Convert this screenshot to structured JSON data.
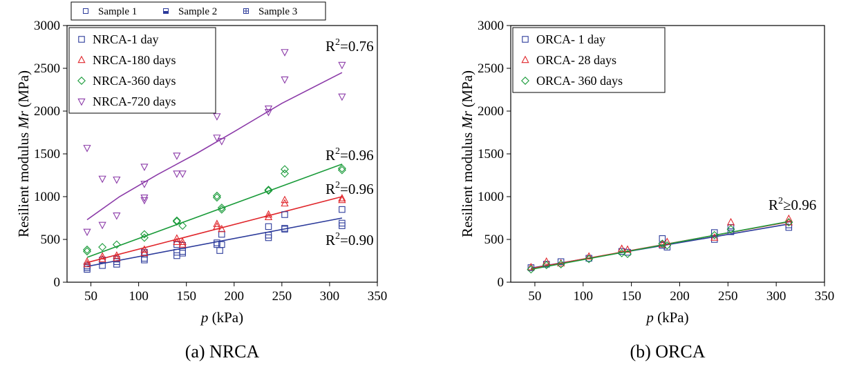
{
  "top_legend": {
    "entries": [
      {
        "label": "Sample 1",
        "marker": "square-open",
        "color": "#2b3a9a"
      },
      {
        "label": "Sample 2",
        "marker": "square-half",
        "color": "#2b3a9a"
      },
      {
        "label": "Sample 3",
        "marker": "square-cross",
        "color": "#2b3a9a"
      }
    ]
  },
  "chart_data": [
    {
      "type": "scatter",
      "caption": "(a) NRCA",
      "xlabel": "p (kPa)",
      "ylabel": "Resilient modulus Mr (MPa)",
      "xlim": [
        25,
        350
      ],
      "ylim": [
        0,
        3000
      ],
      "xticks": [
        50,
        100,
        150,
        200,
        250,
        300,
        350
      ],
      "yticks": [
        0,
        500,
        1000,
        1500,
        2000,
        2500,
        3000
      ],
      "legend_position": "top-left",
      "grid": false,
      "series": [
        {
          "name": "NRCA-1 day",
          "marker": "square",
          "color": "#2b3a9a",
          "points": [
            [
              46,
              150
            ],
            [
              46,
              170
            ],
            [
              46,
              190
            ],
            [
              62,
              195
            ],
            [
              62,
              260
            ],
            [
              77,
              210
            ],
            [
              77,
              240
            ],
            [
              77,
              270
            ],
            [
              106,
              260
            ],
            [
              106,
              280
            ],
            [
              106,
              330
            ],
            [
              106,
              350
            ],
            [
              140,
              310
            ],
            [
              140,
              350
            ],
            [
              140,
              440
            ],
            [
              146,
              340
            ],
            [
              146,
              360
            ],
            [
              146,
              430
            ],
            [
              182,
              440
            ],
            [
              182,
              460
            ],
            [
              185,
              370
            ],
            [
              187,
              440
            ],
            [
              187,
              560
            ],
            [
              236,
              520
            ],
            [
              236,
              550
            ],
            [
              236,
              650
            ],
            [
              253,
              620
            ],
            [
              253,
              630
            ],
            [
              253,
              790
            ],
            [
              313,
              660
            ],
            [
              313,
              690
            ],
            [
              313,
              850
            ]
          ],
          "fit": [
            [
              46,
              185
            ],
            [
              313,
              750
            ]
          ],
          "r2_label": "R2=0.90"
        },
        {
          "name": "NRCA-180 days",
          "marker": "triangle-up",
          "color": "#e0262b",
          "points": [
            [
              46,
              210
            ],
            [
              46,
              240
            ],
            [
              62,
              270
            ],
            [
              62,
              300
            ],
            [
              77,
              280
            ],
            [
              77,
              310
            ],
            [
              106,
              340
            ],
            [
              106,
              380
            ],
            [
              140,
              470
            ],
            [
              140,
              510
            ],
            [
              146,
              470
            ],
            [
              146,
              440
            ],
            [
              182,
              650
            ],
            [
              182,
              680
            ],
            [
              187,
              620
            ],
            [
              236,
              760
            ],
            [
              236,
              790
            ],
            [
              253,
              920
            ],
            [
              253,
              960
            ],
            [
              313,
              960
            ],
            [
              313,
              980
            ]
          ],
          "fit": [
            [
              46,
              230
            ],
            [
              313,
              1000
            ]
          ],
          "r2_label": "R2=0.96"
        },
        {
          "name": "NRCA-360 days",
          "marker": "diamond",
          "color": "#1a9b3a",
          "points": [
            [
              46,
              360
            ],
            [
              46,
              380
            ],
            [
              62,
              410
            ],
            [
              77,
              440
            ],
            [
              106,
              520
            ],
            [
              106,
              560
            ],
            [
              140,
              710
            ],
            [
              140,
              720
            ],
            [
              146,
              660
            ],
            [
              182,
              990
            ],
            [
              182,
              1010
            ],
            [
              187,
              850
            ],
            [
              187,
              870
            ],
            [
              236,
              1070
            ],
            [
              236,
              1080
            ],
            [
              253,
              1270
            ],
            [
              253,
              1320
            ],
            [
              313,
              1310
            ],
            [
              313,
              1330
            ]
          ],
          "fit": [
            [
              46,
              290
            ],
            [
              313,
              1380
            ]
          ],
          "r2_label": "R2=0.96"
        },
        {
          "name": "NRCA-720 days",
          "marker": "triangle-down",
          "color": "#8b3aa8",
          "points": [
            [
              46,
              590
            ],
            [
              46,
              1570
            ],
            [
              62,
              670
            ],
            [
              62,
              1210
            ],
            [
              77,
              780
            ],
            [
              77,
              1200
            ],
            [
              106,
              960
            ],
            [
              106,
              990
            ],
            [
              106,
              1150
            ],
            [
              106,
              1350
            ],
            [
              140,
              1270
            ],
            [
              140,
              1480
            ],
            [
              146,
              1270
            ],
            [
              182,
              1690
            ],
            [
              182,
              1940
            ],
            [
              187,
              1650
            ],
            [
              236,
              1990
            ],
            [
              236,
              2030
            ],
            [
              253,
              2370
            ],
            [
              253,
              2690
            ],
            [
              313,
              2170
            ],
            [
              313,
              2540
            ]
          ],
          "fit": [
            [
              46,
              730
            ],
            [
              80,
              1000
            ],
            [
              120,
              1260
            ],
            [
              160,
              1500
            ],
            [
              200,
              1760
            ],
            [
              250,
              2090
            ],
            [
              313,
              2450
            ]
          ],
          "r2_label": "R2=0.76"
        }
      ]
    },
    {
      "type": "scatter",
      "caption": "(b) ORCA",
      "xlabel": "p (kPa)",
      "ylabel": "Resilient modulus Mr (MPa)",
      "xlim": [
        25,
        350
      ],
      "ylim": [
        0,
        3000
      ],
      "xticks": [
        50,
        100,
        150,
        200,
        250,
        300,
        350
      ],
      "yticks": [
        0,
        500,
        1000,
        1500,
        2000,
        2500,
        3000
      ],
      "legend_position": "top-left",
      "grid": false,
      "r2_label": "R2≥0.96",
      "series": [
        {
          "name": "ORCA- 1 day",
          "marker": "square",
          "color": "#2b3a9a",
          "points": [
            [
              46,
              170
            ],
            [
              62,
              210
            ],
            [
              77,
              240
            ],
            [
              106,
              280
            ],
            [
              140,
              360
            ],
            [
              146,
              350
            ],
            [
              182,
              430
            ],
            [
              182,
              510
            ],
            [
              187,
              410
            ],
            [
              236,
              500
            ],
            [
              236,
              580
            ],
            [
              253,
              590
            ],
            [
              253,
              640
            ],
            [
              313,
              640
            ],
            [
              313,
              670
            ]
          ],
          "fit": [
            [
              46,
              165
            ],
            [
              313,
              680
            ]
          ]
        },
        {
          "name": "ORCA- 28 days",
          "marker": "triangle-up",
          "color": "#e0262b",
          "points": [
            [
              46,
              175
            ],
            [
              62,
              240
            ],
            [
              77,
              220
            ],
            [
              106,
              300
            ],
            [
              140,
              390
            ],
            [
              146,
              380
            ],
            [
              182,
              440
            ],
            [
              187,
              470
            ],
            [
              236,
              520
            ],
            [
              253,
              700
            ],
            [
              313,
              700
            ],
            [
              313,
              740
            ]
          ],
          "fit": [
            [
              46,
              160
            ],
            [
              313,
              705
            ]
          ]
        },
        {
          "name": "ORCA- 360 days",
          "marker": "diamond",
          "color": "#1a9b3a",
          "points": [
            [
              46,
              150
            ],
            [
              62,
              200
            ],
            [
              77,
              210
            ],
            [
              106,
              270
            ],
            [
              140,
              340
            ],
            [
              146,
              330
            ],
            [
              182,
              450
            ],
            [
              187,
              430
            ],
            [
              236,
              550
            ],
            [
              253,
              620
            ],
            [
              313,
              700
            ]
          ],
          "fit": [
            [
              46,
              150
            ],
            [
              313,
              710
            ]
          ]
        }
      ]
    }
  ]
}
